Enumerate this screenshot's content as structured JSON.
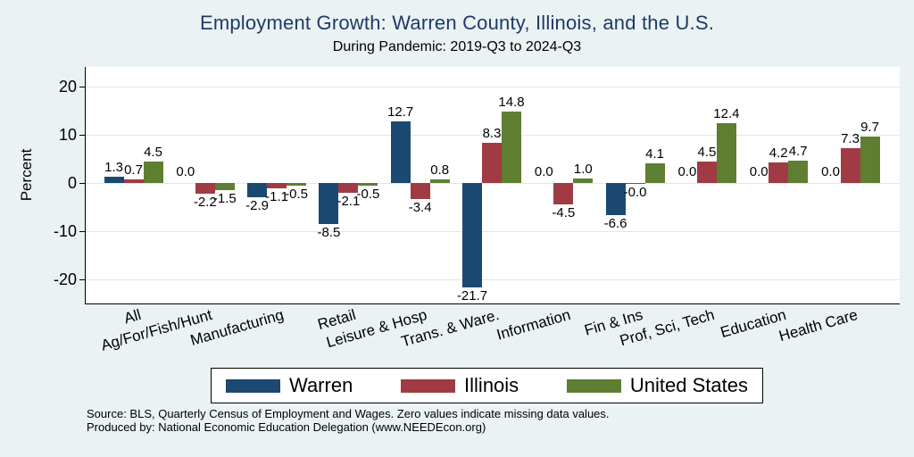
{
  "page": {
    "background": "#eaf2f3",
    "plot_background": "#ffffff",
    "grid_color": "#dde8ec"
  },
  "chart_data": {
    "type": "bar",
    "title": "Employment Growth: Warren County, Illinois, and the U.S.",
    "title_color": "#1f3a66",
    "subtitle": "During Pandemic: 2019-Q3 to 2024-Q3",
    "ylabel": "Percent",
    "ylim": [
      -25,
      24
    ],
    "yticks": [
      20,
      10,
      0,
      -10,
      -20
    ],
    "grid": true,
    "legend_position": "bottom",
    "categories": [
      "All",
      "Ag/For/Fish/Hunt",
      "Manufacturing",
      "Retail",
      "Leisure & Hosp",
      "Trans. & Ware.",
      "Information",
      "Fin & Ins",
      "Prof, Sci, Tech",
      "Education",
      "Health Care"
    ],
    "series": [
      {
        "name": "Warren",
        "color": "#1b4971",
        "values": [
          1.3,
          0.0,
          -2.9,
          -8.5,
          12.7,
          -21.7,
          0.0,
          -6.6,
          0.0,
          0.0,
          0.0
        ],
        "labels": [
          "1.3",
          "0.0",
          "-2.9",
          "-8.5",
          "12.7",
          "-21.7",
          "0.0",
          "-6.6",
          "0.0",
          "0.0",
          "0.0"
        ]
      },
      {
        "name": "Illinois",
        "color": "#a03b44",
        "values": [
          0.7,
          -2.2,
          -1.1,
          -2.1,
          -3.4,
          8.3,
          -4.5,
          -0.0,
          4.5,
          4.2,
          7.3
        ],
        "labels": [
          "0.7",
          "-2.2",
          "-1.1",
          "-2.1",
          "-3.4",
          "8.3",
          "-4.5",
          "-0.0",
          "4.5",
          "4.2",
          "7.3"
        ]
      },
      {
        "name": "United States",
        "color": "#5e7e31",
        "values": [
          4.5,
          -1.5,
          -0.5,
          -0.5,
          0.8,
          14.8,
          1.0,
          4.1,
          12.4,
          4.7,
          9.7
        ],
        "labels": [
          "4.5",
          "-1.5",
          "-0.5",
          "-0.5",
          "0.8",
          "14.8",
          "1.0",
          "4.1",
          "12.4",
          "4.7",
          "9.7"
        ]
      }
    ],
    "note": "Zero values indicate missing data values."
  },
  "footer": {
    "source": "Source: BLS, Quarterly Census of Employment and Wages. Zero values indicate missing data values.",
    "produced_by": "Produced by: National Economic Education Delegation (www.NEEDEcon.org)"
  }
}
